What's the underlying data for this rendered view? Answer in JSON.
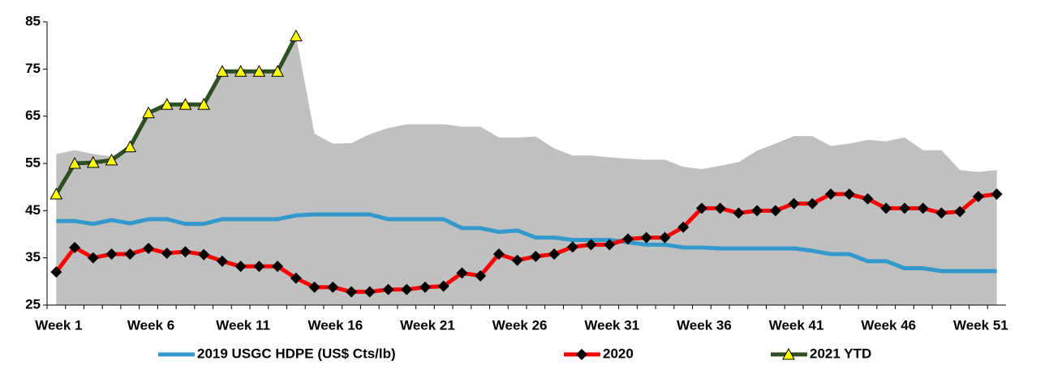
{
  "chart_data": {
    "type": "line",
    "categories": [
      "Week 1",
      null,
      null,
      null,
      null,
      "Week 6",
      null,
      null,
      null,
      null,
      "Week 11",
      null,
      null,
      null,
      null,
      "Week 16",
      null,
      null,
      null,
      null,
      "Week 21",
      null,
      null,
      null,
      null,
      "Week 26",
      null,
      null,
      null,
      null,
      "Week 31",
      null,
      null,
      null,
      null,
      "Week 36",
      null,
      null,
      null,
      null,
      "Week 41",
      null,
      null,
      null,
      null,
      "Week 46",
      null,
      null,
      null,
      null,
      "Week 51",
      null
    ],
    "ylim": [
      25,
      85
    ],
    "yticks": [
      25,
      35,
      45,
      55,
      65,
      75,
      85
    ],
    "legend": "bottom",
    "series": [
      {
        "kind": "area",
        "color": "#c0c0c0",
        "values": [
          57,
          57.8,
          57,
          56.5,
          58.5,
          65.8,
          67.5,
          67.5,
          67.5,
          74.5,
          74.5,
          74.5,
          74.5,
          82,
          61.3,
          59.2,
          59.3,
          61.2,
          62.5,
          63.3,
          63.3,
          63.3,
          62.8,
          62.8,
          60.5,
          60.5,
          60.7,
          58.2,
          56.7,
          56.7,
          56.3,
          56,
          55.8,
          55.8,
          54.3,
          53.8,
          54.5,
          55.3,
          57.7,
          59.2,
          60.8,
          60.8,
          58.7,
          59.2,
          60,
          59.7,
          60.5,
          57.8,
          57.8,
          53.6,
          53.2,
          53.6
        ]
      },
      {
        "name": "2019 USGC HDPE (US$ Cts/lb)",
        "color": "#3399cc",
        "marker": "none",
        "values": [
          42.8,
          42.8,
          42.2,
          43,
          42.3,
          43.2,
          43.2,
          42.2,
          42.2,
          43.2,
          43.2,
          43.2,
          43.2,
          44,
          44.2,
          44.2,
          44.2,
          44.2,
          43.2,
          43.2,
          43.2,
          43.2,
          41.3,
          41.3,
          40.5,
          40.8,
          39.3,
          39.3,
          38.8,
          38.8,
          38.8,
          38.3,
          37.8,
          37.8,
          37.2,
          37.2,
          37,
          37,
          37,
          37,
          37,
          36.5,
          35.8,
          35.8,
          34.3,
          34.3,
          32.8,
          32.8,
          32.2,
          32.2,
          32.2,
          32.2
        ]
      },
      {
        "name": "2020",
        "color": "#ff0000",
        "marker": "diamond",
        "marker_color": "#000000",
        "values": [
          32,
          37.2,
          35,
          35.8,
          35.8,
          37,
          36,
          36.3,
          35.7,
          34.3,
          33.2,
          33.2,
          33.2,
          30.7,
          28.8,
          28.8,
          27.8,
          27.8,
          28.3,
          28.3,
          28.8,
          29,
          31.8,
          31.2,
          35.8,
          34.5,
          35.3,
          35.8,
          37.3,
          37.8,
          37.8,
          39,
          39.3,
          39.3,
          41.5,
          45.5,
          45.5,
          44.5,
          45,
          45,
          46.5,
          46.5,
          48.5,
          48.5,
          47.5,
          45.5,
          45.5,
          45.5,
          44.5,
          44.8,
          48,
          48.5
        ]
      },
      {
        "name": "2021 YTD",
        "color": "#2d4f22",
        "marker": "triangle",
        "marker_color": "#ffff00",
        "values": [
          48.5,
          55,
          55.2,
          55.7,
          58.5,
          65.7,
          67.5,
          67.5,
          67.5,
          74.5,
          74.5,
          74.5,
          74.5,
          82,
          null,
          null,
          null,
          null,
          null,
          null,
          null,
          null,
          null,
          null,
          null,
          null,
          null,
          null,
          null,
          null,
          null,
          null,
          null,
          null,
          null,
          null,
          null,
          null,
          null,
          null,
          null,
          null,
          null,
          null,
          null,
          null,
          null,
          null,
          null,
          null,
          null,
          null
        ]
      }
    ]
  }
}
